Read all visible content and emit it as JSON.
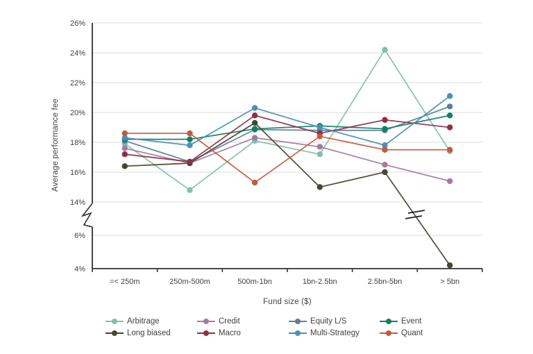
{
  "chart_data": {
    "type": "line",
    "title": "",
    "xlabel": "Fund size ($)",
    "ylabel": "Average performance fee",
    "categories": [
      "=< 250m",
      "250m-500m",
      "500m-1bn",
      "1bn-2.5bn",
      "2.5bn-5bn",
      "> 5bn"
    ],
    "y_axis": {
      "unit": "%",
      "upper_range": [
        14,
        26
      ],
      "lower_range": [
        4,
        6
      ],
      "axis_break_between": [
        6,
        14
      ],
      "ticks": [
        {
          "label": "26%",
          "v": 26
        },
        {
          "label": "24%",
          "v": 24
        },
        {
          "label": "22%",
          "v": 22
        },
        {
          "label": "20%",
          "v": 20
        },
        {
          "label": "18%",
          "v": 18
        },
        {
          "label": "16%",
          "v": 16
        },
        {
          "label": "14%",
          "v": 14
        },
        {
          "label": "6%",
          "v": 6
        },
        {
          "label": "4%",
          "v": 4
        }
      ]
    },
    "grid": true,
    "legend_position": "bottom",
    "series": [
      {
        "name": "Arbitrage",
        "color": "#7fc1ab",
        "values": [
          17.9,
          14.8,
          18.1,
          17.2,
          24.2,
          17.4
        ]
      },
      {
        "name": "Credit",
        "color": "#a779a4",
        "values": [
          17.6,
          16.6,
          18.3,
          17.7,
          16.5,
          15.4
        ]
      },
      {
        "name": "Equity L/S",
        "color": "#5c7f99",
        "values": [
          18.1,
          16.7,
          18.85,
          18.8,
          18.8,
          20.4
        ]
      },
      {
        "name": "Event",
        "color": "#0e8165",
        "values": [
          18.2,
          18.2,
          18.9,
          19.1,
          18.9,
          19.8
        ]
      },
      {
        "name": "Long biased",
        "color": "#4a452f",
        "values": [
          16.4,
          16.6,
          19.3,
          15.0,
          16.0,
          4.2
        ]
      },
      {
        "name": "Macro",
        "color": "#8e2f45",
        "values": [
          17.2,
          16.7,
          19.8,
          18.6,
          19.5,
          19.0
        ]
      },
      {
        "name": "Multi-Strategy",
        "color": "#4a90b8",
        "values": [
          18.3,
          17.8,
          20.3,
          19.0,
          17.8,
          21.1
        ]
      },
      {
        "name": "Quant",
        "color": "#c45a3d",
        "values": [
          18.6,
          18.6,
          15.3,
          18.4,
          17.5,
          17.5
        ]
      }
    ],
    "annotations": {
      "line_break_marks_on": "Long biased",
      "break_mark_symbol": "double-dash"
    }
  }
}
